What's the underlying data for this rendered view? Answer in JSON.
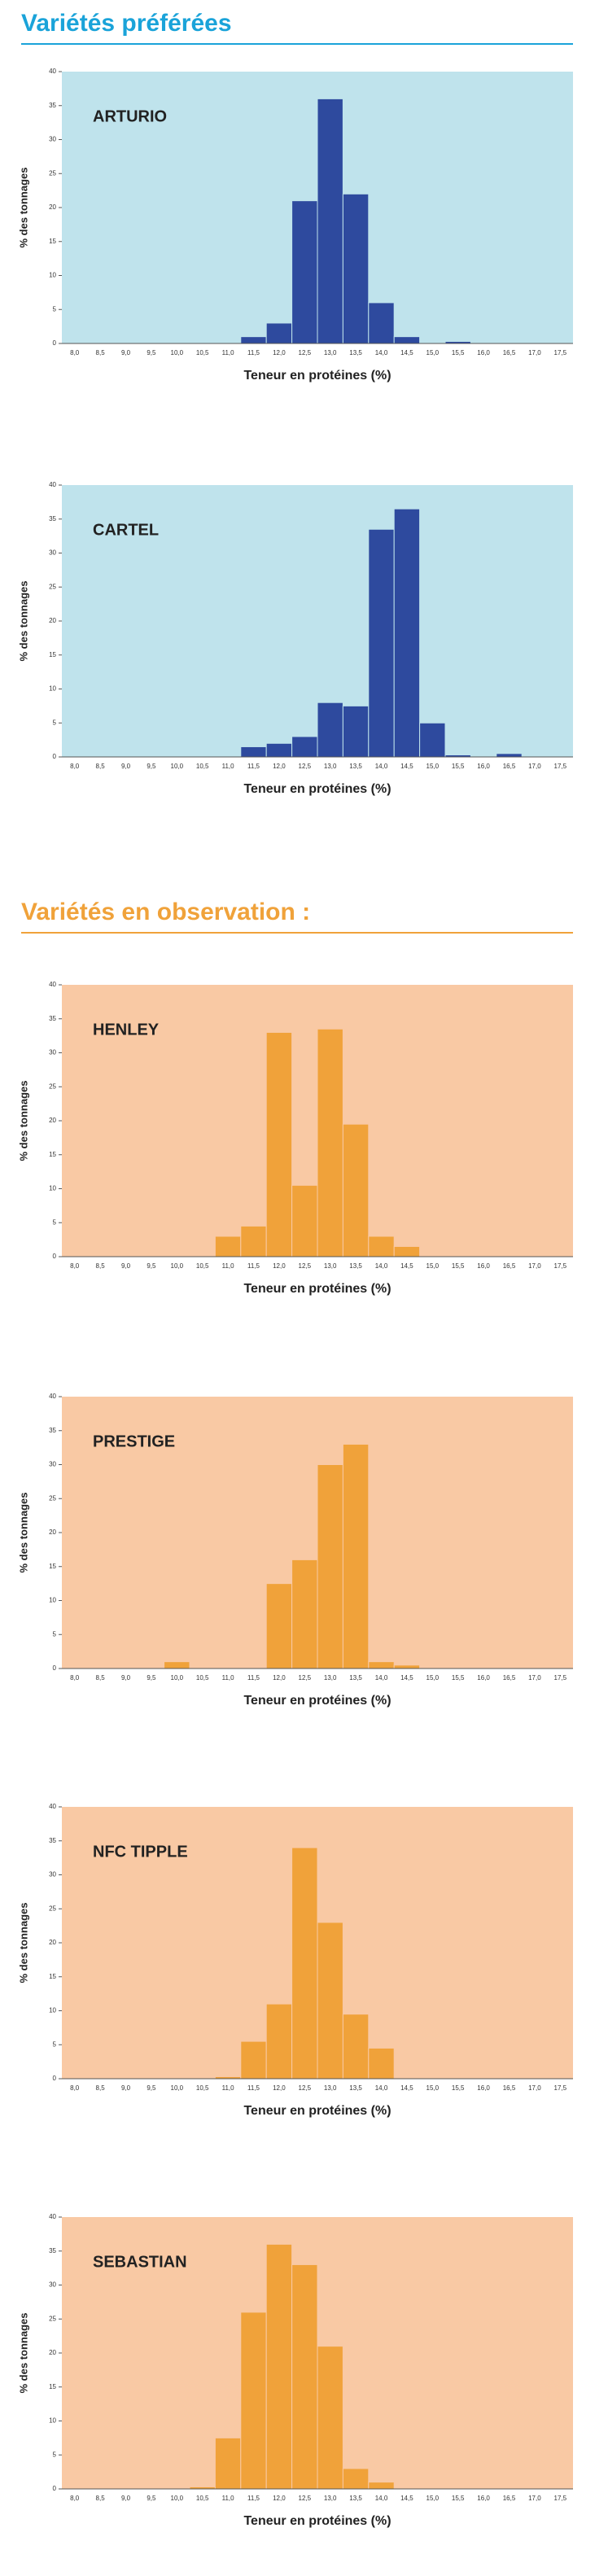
{
  "sections": [
    {
      "title": "Variétés préférées",
      "color": "#1aa3d9"
    },
    {
      "title": "Variétés en observation :",
      "color": "#f0a23a"
    }
  ],
  "chart_data": [
    {
      "type": "bar",
      "title": "ARTURIO",
      "xlabel": "Teneur en protéines (%)",
      "ylabel": "% des tonnages",
      "color": "#2e4a9e",
      "panel_color": "#bfe3ec",
      "categories": [
        "8,0",
        "8,5",
        "9,0",
        "9,5",
        "10,0",
        "10,5",
        "11,0",
        "11,5",
        "12,0",
        "12,5",
        "13,0",
        "13,5",
        "14,0",
        "14,5",
        "15,0",
        "15,5",
        "16,0",
        "16,5",
        "17,0",
        "17,5"
      ],
      "values": [
        0,
        0,
        0,
        0,
        0,
        0,
        0,
        1,
        3,
        21,
        36,
        22,
        6,
        1,
        0,
        0.3,
        0,
        0,
        0,
        0
      ],
      "ylim": [
        0,
        40
      ],
      "yticks": [
        0,
        5,
        10,
        15,
        20,
        25,
        30,
        35,
        40
      ]
    },
    {
      "type": "bar",
      "title": "CARTEL",
      "xlabel": "Teneur en protéines (%)",
      "ylabel": "% des tonnages",
      "color": "#2e4a9e",
      "panel_color": "#bfe3ec",
      "categories": [
        "8,0",
        "8,5",
        "9,0",
        "9,5",
        "10,0",
        "10,5",
        "11,0",
        "11,5",
        "12,0",
        "12,5",
        "13,0",
        "13,5",
        "14,0",
        "14,5",
        "15,0",
        "15,5",
        "16,0",
        "16,5",
        "17,0",
        "17,5"
      ],
      "values": [
        0,
        0,
        0,
        0,
        0,
        0,
        0,
        1.5,
        2,
        3,
        8,
        7.5,
        33.5,
        36.5,
        5,
        0.3,
        0,
        0.5,
        0,
        0
      ],
      "ylim": [
        0,
        40
      ],
      "yticks": [
        0,
        5,
        10,
        15,
        20,
        25,
        30,
        35,
        40
      ]
    },
    {
      "type": "bar",
      "title": "HENLEY",
      "xlabel": "Teneur en protéines (%)",
      "ylabel": "% des tonnages",
      "color": "#f0a23a",
      "panel_color": "#f9c9a4",
      "categories": [
        "8,0",
        "8,5",
        "9,0",
        "9,5",
        "10,0",
        "10,5",
        "11,0",
        "11,5",
        "12,0",
        "12,5",
        "13,0",
        "13,5",
        "14,0",
        "14,5",
        "15,0",
        "15,5",
        "16,0",
        "16,5",
        "17,0",
        "17,5"
      ],
      "values": [
        0,
        0,
        0,
        0,
        0,
        0,
        3,
        4.5,
        33,
        10.5,
        33.5,
        19.5,
        3,
        1.5,
        0,
        0,
        0,
        0,
        0,
        0
      ],
      "ylim": [
        0,
        40
      ],
      "yticks": [
        0,
        5,
        10,
        15,
        20,
        25,
        30,
        35,
        40
      ]
    },
    {
      "type": "bar",
      "title": "PRESTIGE",
      "xlabel": "Teneur en protéines (%)",
      "ylabel": "% des tonnages",
      "color": "#f0a23a",
      "panel_color": "#f9c9a4",
      "categories": [
        "8,0",
        "8,5",
        "9,0",
        "9,5",
        "10,0",
        "10,5",
        "11,0",
        "11,5",
        "12,0",
        "12,5",
        "13,0",
        "13,5",
        "14,0",
        "14,5",
        "15,0",
        "15,5",
        "16,0",
        "16,5",
        "17,0",
        "17,5"
      ],
      "values": [
        0,
        0,
        0,
        0,
        1,
        0,
        0,
        0,
        12.5,
        16,
        30,
        33,
        1,
        0.5,
        0,
        0,
        0,
        0,
        0,
        0
      ],
      "ylim": [
        0,
        40
      ],
      "yticks": [
        0,
        5,
        10,
        15,
        20,
        25,
        30,
        35,
        40
      ]
    },
    {
      "type": "bar",
      "title": "NFC TIPPLE",
      "xlabel": "Teneur en protéines (%)",
      "ylabel": "% des tonnages",
      "color": "#f0a23a",
      "panel_color": "#f9c9a4",
      "categories": [
        "8,0",
        "8,5",
        "9,0",
        "9,5",
        "10,0",
        "10,5",
        "11,0",
        "11,5",
        "12,0",
        "12,5",
        "13,0",
        "13,5",
        "14,0",
        "14,5",
        "15,0",
        "15,5",
        "16,0",
        "16,5",
        "17,0",
        "17,5"
      ],
      "values": [
        0,
        0,
        0,
        0,
        0,
        0,
        0.3,
        5.5,
        11,
        34,
        23,
        9.5,
        4.5,
        0,
        0,
        0,
        0,
        0,
        0,
        0
      ],
      "ylim": [
        0,
        40
      ],
      "yticks": [
        0,
        5,
        10,
        15,
        20,
        25,
        30,
        35,
        40
      ]
    },
    {
      "type": "bar",
      "title": "SEBASTIAN",
      "xlabel": "Teneur en protéines (%)",
      "ylabel": "% des tonnages",
      "color": "#f0a23a",
      "panel_color": "#f9c9a4",
      "categories": [
        "8,0",
        "8,5",
        "9,0",
        "9,5",
        "10,0",
        "10,5",
        "11,0",
        "11,5",
        "12,0",
        "12,5",
        "13,0",
        "13,5",
        "14,0",
        "14,5",
        "15,0",
        "15,5",
        "16,0",
        "16,5",
        "17,0",
        "17,5"
      ],
      "values": [
        0,
        0,
        0,
        0,
        0,
        0.3,
        7.5,
        26,
        36,
        33,
        21,
        3,
        1,
        0,
        0,
        0,
        0,
        0,
        0,
        0
      ],
      "ylim": [
        0,
        40
      ],
      "yticks": [
        0,
        5,
        10,
        15,
        20,
        25,
        30,
        35,
        40
      ]
    }
  ]
}
